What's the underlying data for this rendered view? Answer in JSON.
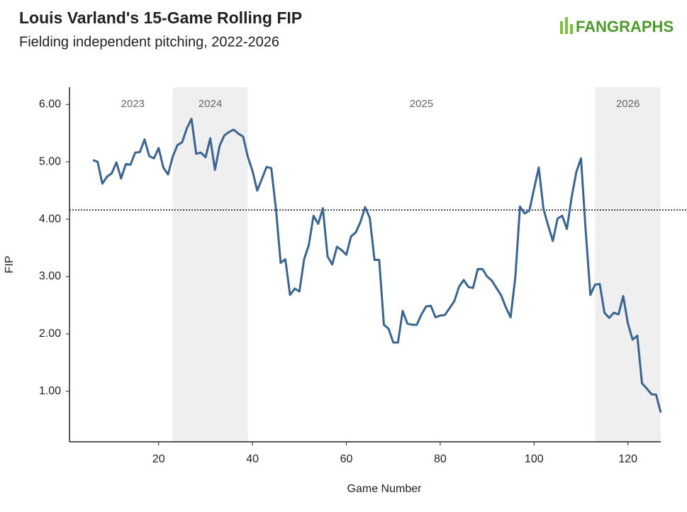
{
  "logo": "FANGRAPHS",
  "chart_data": {
    "type": "line",
    "title": "Louis Varland's 15-Game Rolling FIP",
    "subtitle": "Fielding independent pitching, 2022-2026",
    "x_label": "Game Number",
    "y_label": "FIP",
    "xlim": [
      1,
      127
    ],
    "ylim": [
      0.12,
      6.3
    ],
    "xticks": [
      20,
      40,
      60,
      80,
      100,
      120
    ],
    "yticks": [
      {
        "value": 1,
        "label": "1.00"
      },
      {
        "value": 2,
        "label": "2.00"
      },
      {
        "value": 3,
        "label": "3.00"
      },
      {
        "value": 4,
        "label": "4.00"
      },
      {
        "value": 5,
        "label": "5.00"
      },
      {
        "value": 6,
        "label": "6.00"
      }
    ],
    "reference_line": 4.16,
    "periods": [
      {
        "label": "2023",
        "start": 6,
        "end": 23,
        "shaded": false
      },
      {
        "label": "2024",
        "start": 23,
        "end": 39,
        "shaded": true
      },
      {
        "label": "2025",
        "start": 39,
        "end": 113,
        "shaded": false
      },
      {
        "label": "2026",
        "start": 113,
        "end": 127,
        "shaded": true
      }
    ],
    "x": [
      6,
      7,
      8,
      9,
      10,
      11,
      12,
      13,
      14,
      15,
      16,
      17,
      18,
      19,
      20,
      21,
      22,
      23,
      24,
      25,
      26,
      27,
      28,
      29,
      30,
      31,
      32,
      33,
      34,
      35,
      36,
      37,
      38,
      39,
      40,
      41,
      42,
      43,
      44,
      45,
      46,
      47,
      48,
      49,
      50,
      51,
      52,
      53,
      54,
      55,
      56,
      57,
      58,
      59,
      60,
      61,
      62,
      63,
      64,
      65,
      66,
      67,
      68,
      69,
      70,
      71,
      72,
      73,
      74,
      75,
      76,
      77,
      78,
      79,
      80,
      81,
      82,
      83,
      84,
      85,
      86,
      87,
      88,
      89,
      90,
      91,
      92,
      93,
      94,
      95,
      96,
      97,
      98,
      99,
      100,
      101,
      102,
      103,
      104,
      105,
      106,
      107,
      108,
      109,
      110,
      111,
      112,
      113,
      114,
      115,
      116,
      117,
      118,
      119,
      120,
      121,
      122,
      123,
      124,
      125,
      126,
      127
    ],
    "series": [
      {
        "name": "FIP",
        "color": "#3a6590",
        "values": [
          5.03,
          5.0,
          4.62,
          4.74,
          4.8,
          4.99,
          4.71,
          4.96,
          4.95,
          5.16,
          5.17,
          5.39,
          5.1,
          5.06,
          5.24,
          4.9,
          4.78,
          5.09,
          5.29,
          5.34,
          5.58,
          5.75,
          5.14,
          5.16,
          5.08,
          5.41,
          4.86,
          5.28,
          5.46,
          5.52,
          5.56,
          5.49,
          5.44,
          5.09,
          4.84,
          4.5,
          4.7,
          4.91,
          4.89,
          4.18,
          3.24,
          3.3,
          2.68,
          2.79,
          2.74,
          3.3,
          3.55,
          4.06,
          3.92,
          4.19,
          3.35,
          3.21,
          3.52,
          3.46,
          3.38,
          3.7,
          3.77,
          3.95,
          4.21,
          4.02,
          3.29,
          3.29,
          2.16,
          2.09,
          1.85,
          1.85,
          2.4,
          2.18,
          2.16,
          2.16,
          2.34,
          2.48,
          2.49,
          2.29,
          2.32,
          2.33,
          2.45,
          2.57,
          2.82,
          2.94,
          2.82,
          2.8,
          3.13,
          3.13,
          3.0,
          2.93,
          2.8,
          2.67,
          2.46,
          2.29,
          2.98,
          4.22,
          4.1,
          4.15,
          4.53,
          4.9,
          4.18,
          3.89,
          3.62,
          4.01,
          4.06,
          3.83,
          4.38,
          4.82,
          5.06,
          3.8,
          2.68,
          2.86,
          2.87,
          2.37,
          2.28,
          2.37,
          2.34,
          2.66,
          2.18,
          1.9,
          1.97,
          1.14,
          1.05,
          0.95,
          0.94,
          0.63
        ]
      }
    ]
  }
}
